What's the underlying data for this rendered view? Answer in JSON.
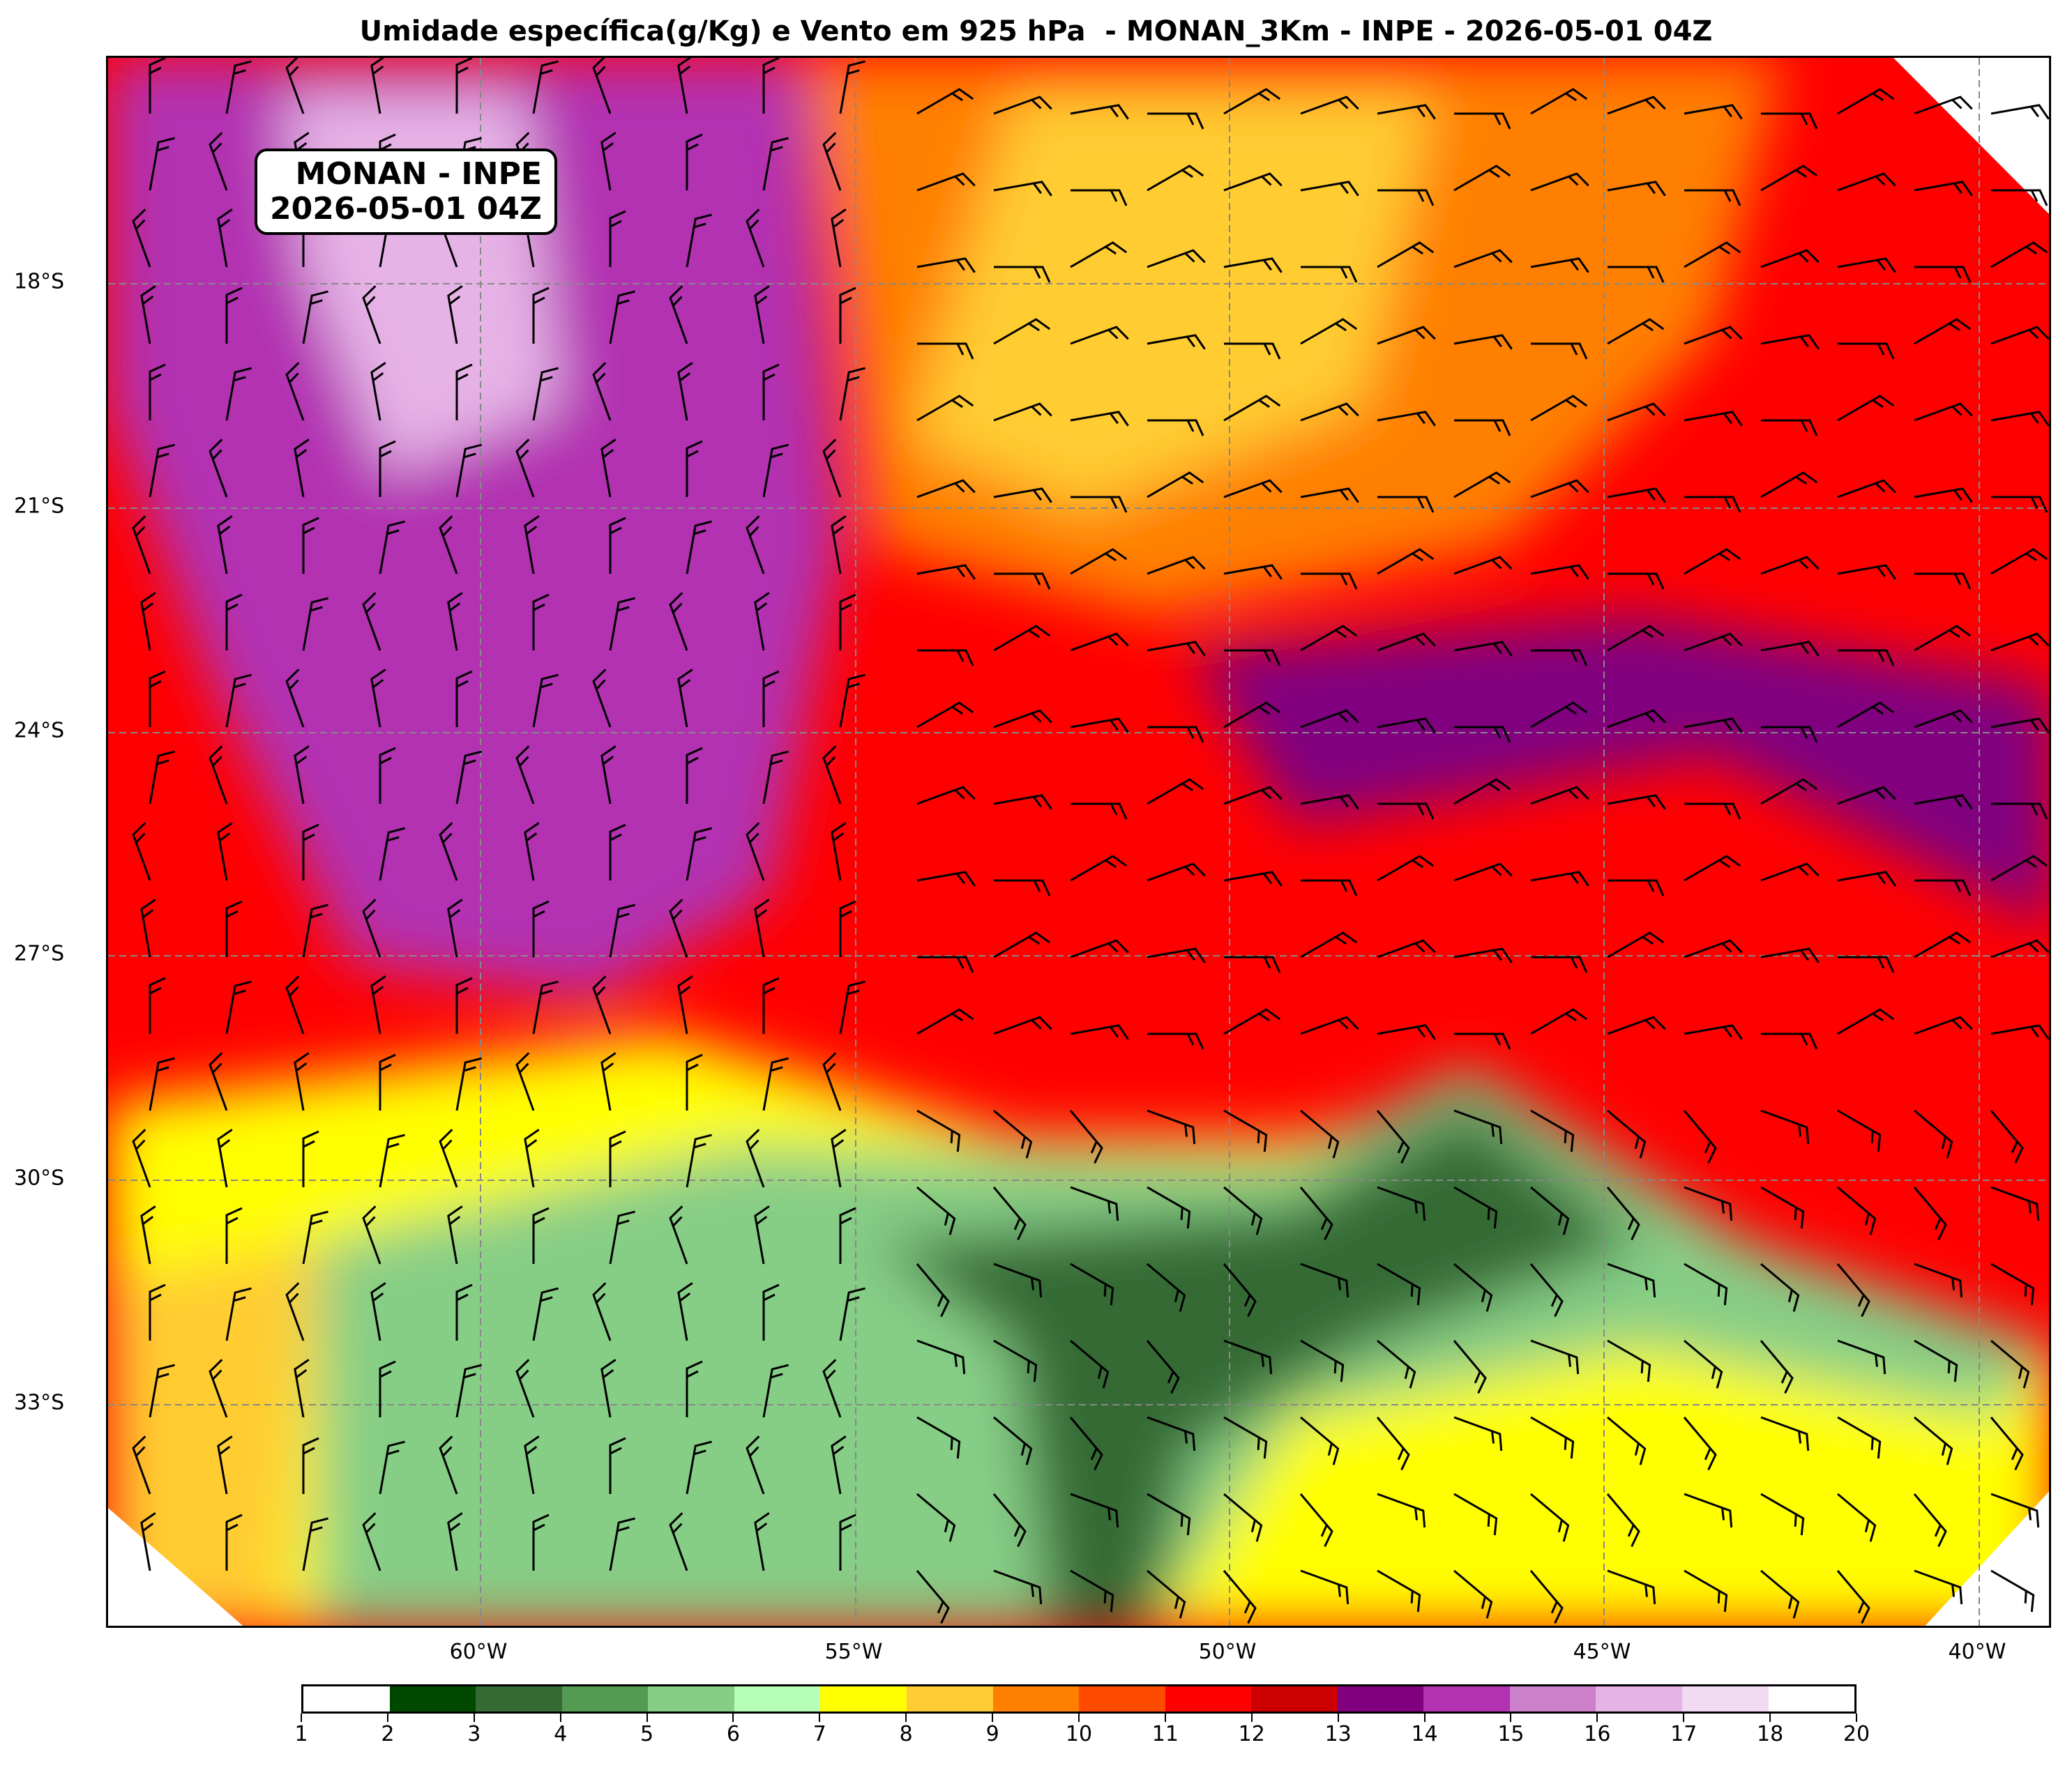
{
  "title": "Umidade específica(g/Kg) e Vento em 925 hPa  - MONAN_3Km - INPE - 2026-05-01 04Z",
  "label_box": {
    "line1": "MONAN - INPE",
    "line2": "2026-05-01 04Z"
  },
  "latitude_labels": [
    "18°S",
    "21°S",
    "24°S",
    "27°S",
    "30°S",
    "33°S"
  ],
  "longitude_labels": [
    "60°W",
    "55°W",
    "50°W",
    "45°W",
    "40°W"
  ],
  "colorbar": {
    "ticks": [
      "1",
      "2",
      "3",
      "4",
      "5",
      "6",
      "7",
      "8",
      "9",
      "10",
      "11",
      "12",
      "13",
      "14",
      "15",
      "16",
      "17",
      "18",
      "20"
    ],
    "colors": [
      "#ffffff",
      "#004a00",
      "#356a35",
      "#539b53",
      "#86ce86",
      "#b6ffb6",
      "#ffff00",
      "#ffcc33",
      "#ff8000",
      "#ff4b00",
      "#ff0000",
      "#cc0000",
      "#800080",
      "#b232b2",
      "#cc80cc",
      "#e6b3e6",
      "#f2daf2",
      "#ffffff"
    ]
  },
  "field_colors": {
    "red": "#ff0000",
    "darkred": "#cc0000",
    "orange": "#ff8000",
    "orangered": "#ff4b00",
    "gold": "#ffcc33",
    "yellow": "#ffff00",
    "purple": "#800080",
    "magenta": "#b232b2",
    "lightgreen": "#b6ffb6",
    "green": "#539b53",
    "darkgreen": "#356a35"
  }
}
